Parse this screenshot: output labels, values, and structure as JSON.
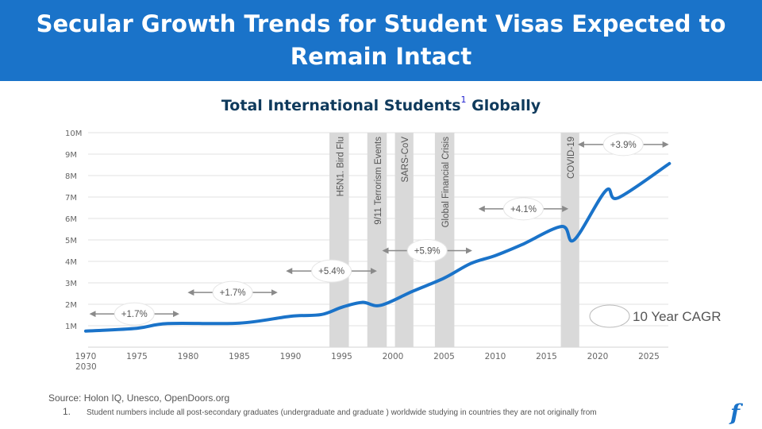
{
  "header": {
    "title": "Secular Growth Trends for Student Visas Expected to Remain Intact"
  },
  "chart_data": {
    "type": "line",
    "title": "Total International Students",
    "title_suffix": "Globally",
    "title_footnote": "1",
    "ylabel": "",
    "xlabel": "",
    "ylim": [
      0,
      10
    ],
    "xlim": [
      1970,
      2027
    ],
    "y_ticks": [
      "1M",
      "2M",
      "3M",
      "4M",
      "5M",
      "6M",
      "7M",
      "8M",
      "9M",
      "10M"
    ],
    "x_ticks": [
      "1970",
      "1975",
      "1980",
      "1985",
      "1990",
      "1995",
      "2000",
      "2005",
      "2010",
      "2015",
      "2020",
      "2025"
    ],
    "x_extra_label": "2030",
    "grid": true,
    "series": [
      {
        "name": "International students (M)",
        "color": "#1a73c9",
        "x": [
          1970,
          1975,
          1978,
          1985,
          1990,
          1993,
          1995,
          1997,
          1998.8,
          2001.9,
          2005,
          2007.6,
          2010,
          2012.6,
          2016.5,
          2017.7,
          2020.8,
          2022,
          2027
        ],
        "y": [
          0.75,
          0.88,
          1.1,
          1.12,
          1.44,
          1.52,
          1.86,
          2.09,
          1.95,
          2.6,
          3.22,
          3.9,
          4.27,
          4.78,
          5.63,
          5.0,
          7.3,
          6.96,
          8.56
        ]
      }
    ],
    "events": [
      {
        "label": "H5N1. Bird Flu",
        "start": 1993.8,
        "end": 1995.7
      },
      {
        "label": "9/11 Terrorism Events",
        "start": 1997.5,
        "end": 1999.4
      },
      {
        "label": "SARS-CoV",
        "start": 2000.2,
        "end": 2002.0
      },
      {
        "label": "Global Financial Crisis",
        "start": 2004.1,
        "end": 2006.0
      },
      {
        "label": "COVID-19",
        "start": 2016.4,
        "end": 2018.2
      }
    ],
    "cagr_annotations": [
      {
        "label": "+1.7%",
        "start": 1970.2,
        "end": 1979.3,
        "level": 1.55
      },
      {
        "label": "+1.7%",
        "start": 1979.8,
        "end": 1988.9,
        "level": 2.55
      },
      {
        "label": "+5.4%",
        "start": 1989.4,
        "end": 1998.6,
        "level": 3.55
      },
      {
        "label": "+5.9%",
        "start": 1998.8,
        "end": 2007.9,
        "level": 4.5
      },
      {
        "label": "+4.1%",
        "start": 2008.2,
        "end": 2017.3,
        "level": 6.45
      },
      {
        "label": "+3.9%",
        "start": 2017.9,
        "end": 2027.1,
        "level": 9.45
      }
    ],
    "legend": {
      "label": "10 Year CAGR",
      "placement": "bottom-right"
    }
  },
  "footer": {
    "source": "Source: Holon IQ, Unesco, OpenDoors.org",
    "note_number": "1.",
    "note_text": "Student numbers include all post-secondary graduates (undergraduate and graduate ) worldwide studying in countries they are not originally from",
    "logo": "f"
  }
}
